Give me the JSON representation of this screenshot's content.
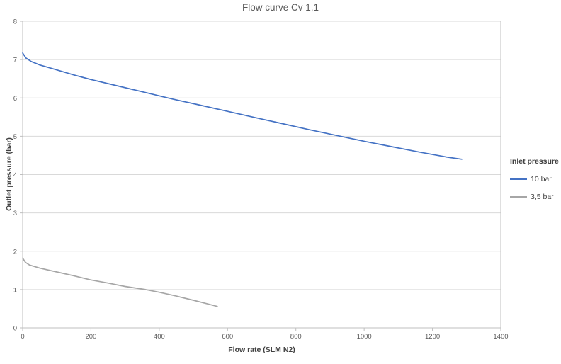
{
  "title": "Flow curve Cv 1,1",
  "chart_data": {
    "type": "line",
    "title": "Flow curve Cv 1,1",
    "xlabel": "Flow rate (SLM N2)",
    "ylabel": "Outlet pressure (bar)",
    "xlim": [
      0,
      1400
    ],
    "ylim": [
      0,
      8
    ],
    "xticks": [
      0,
      200,
      400,
      600,
      800,
      1000,
      1200,
      1400
    ],
    "yticks": [
      0,
      1,
      2,
      3,
      4,
      5,
      6,
      7,
      8
    ],
    "grid": "horizontal-only",
    "legend_title": "Inlet pressure",
    "legend_position": "right",
    "colors": {
      "gridline": "#D9D9D9",
      "axis_line": "#BFBFBF",
      "tick_label": "#595959",
      "title_text": "#595959",
      "axis_title_text": "#404040"
    },
    "series": [
      {
        "name": "10 bar",
        "color": "#4472C4",
        "x": [
          0,
          10,
          25,
          50,
          100,
          150,
          200,
          280,
          360,
          440,
          520,
          600,
          680,
          760,
          840,
          920,
          1000,
          1080,
          1160,
          1240,
          1286
        ],
        "y": [
          7.17,
          7.04,
          6.95,
          6.86,
          6.73,
          6.6,
          6.48,
          6.31,
          6.14,
          5.97,
          5.81,
          5.65,
          5.49,
          5.33,
          5.17,
          5.02,
          4.87,
          4.73,
          4.59,
          4.46,
          4.4
        ]
      },
      {
        "name": "3,5 bar",
        "color": "#A6A6A6",
        "x": [
          0,
          8,
          20,
          50,
          100,
          150,
          200,
          250,
          300,
          360,
          400,
          450,
          500,
          540,
          570
        ],
        "y": [
          1.82,
          1.71,
          1.64,
          1.56,
          1.46,
          1.36,
          1.25,
          1.17,
          1.08,
          1.0,
          0.93,
          0.83,
          0.72,
          0.63,
          0.56
        ]
      }
    ]
  }
}
